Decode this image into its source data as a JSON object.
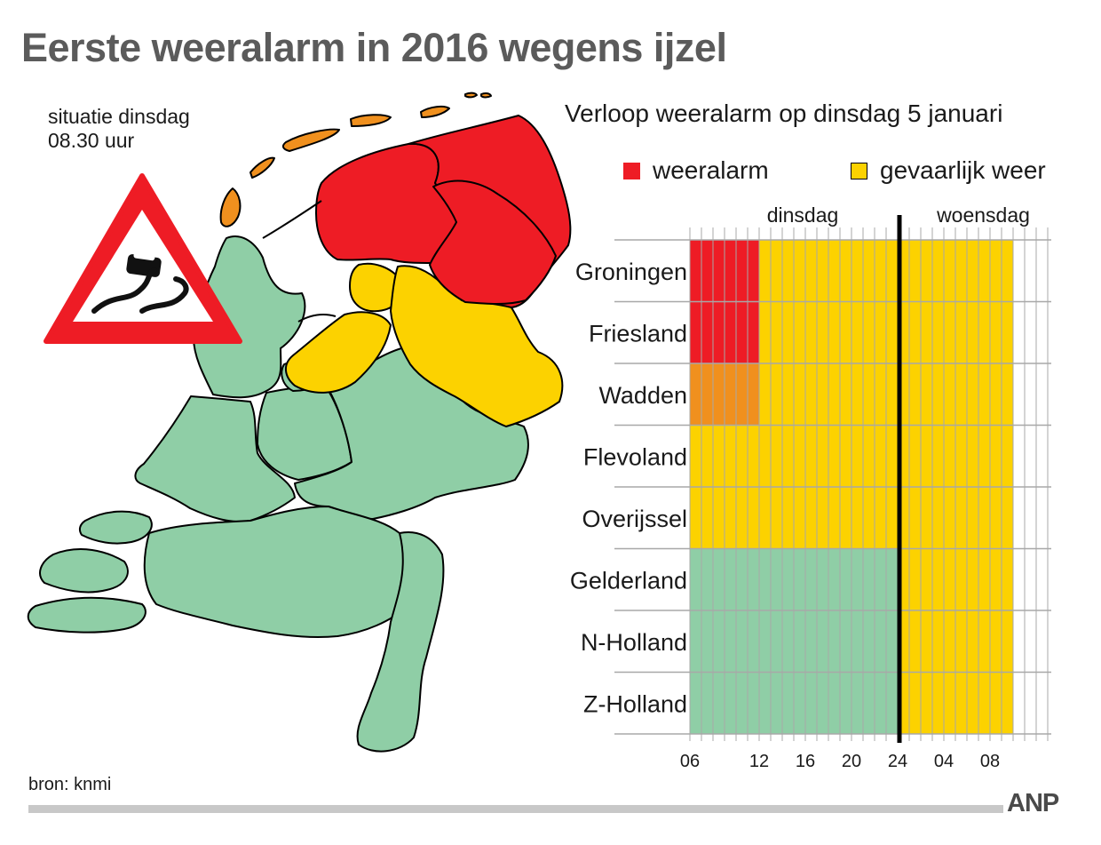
{
  "title": "Eerste weeralarm in 2016 wegens ijzel",
  "map_caption": {
    "line1": "situatie dinsdag",
    "line2": "08.30 uur"
  },
  "source": "bron: knmi",
  "logo": "ANP",
  "colors": {
    "alarm": "#ee1c25",
    "danger": "#fcd200",
    "wadden": "#f0901e",
    "normal": "#8fcea6",
    "grid": "#a8a8a8",
    "divider": "#000000"
  },
  "chart_data": {
    "type": "heatmap",
    "title": "Verloop weeralarm op dinsdag 5 januari",
    "legend": [
      {
        "label": "weeralarm",
        "color": "#ee1c25"
      },
      {
        "label": "gevaarlijk weer",
        "color": "#fcd200"
      }
    ],
    "day_labels": [
      "dinsdag",
      "woensdag"
    ],
    "x_ticks": [
      {
        "label": "06",
        "hour": 6
      },
      {
        "label": "12",
        "hour": 12
      },
      {
        "label": "16",
        "hour": 16
      },
      {
        "label": "20",
        "hour": 20
      },
      {
        "label": "24",
        "hour": 24
      },
      {
        "label": "04",
        "hour": 28
      },
      {
        "label": "08",
        "hour": 32
      }
    ],
    "x_range_hours": [
      6,
      37
    ],
    "day_boundary_hour": 24,
    "rows": [
      {
        "region": "Groningen",
        "segments": [
          {
            "from": 6,
            "to": 12,
            "status": "alarm"
          },
          {
            "from": 12,
            "to": 34,
            "status": "danger"
          }
        ]
      },
      {
        "region": "Friesland",
        "segments": [
          {
            "from": 6,
            "to": 12,
            "status": "alarm"
          },
          {
            "from": 12,
            "to": 34,
            "status": "danger"
          }
        ]
      },
      {
        "region": "Wadden",
        "segments": [
          {
            "from": 6,
            "to": 12,
            "status": "wadden"
          },
          {
            "from": 12,
            "to": 34,
            "status": "danger"
          }
        ]
      },
      {
        "region": "Flevoland",
        "segments": [
          {
            "from": 6,
            "to": 34,
            "status": "danger"
          }
        ]
      },
      {
        "region": "Overijssel",
        "segments": [
          {
            "from": 6,
            "to": 34,
            "status": "danger"
          }
        ]
      },
      {
        "region": "Gelderland",
        "segments": [
          {
            "from": 6,
            "to": 24,
            "status": "normal"
          },
          {
            "from": 24,
            "to": 34,
            "status": "danger"
          }
        ]
      },
      {
        "region": "N-Holland",
        "segments": [
          {
            "from": 6,
            "to": 24,
            "status": "normal"
          },
          {
            "from": 24,
            "to": 34,
            "status": "danger"
          }
        ]
      },
      {
        "region": "Z-Holland",
        "segments": [
          {
            "from": 6,
            "to": 24,
            "status": "normal"
          },
          {
            "from": 24,
            "to": 34,
            "status": "danger"
          }
        ]
      }
    ]
  }
}
